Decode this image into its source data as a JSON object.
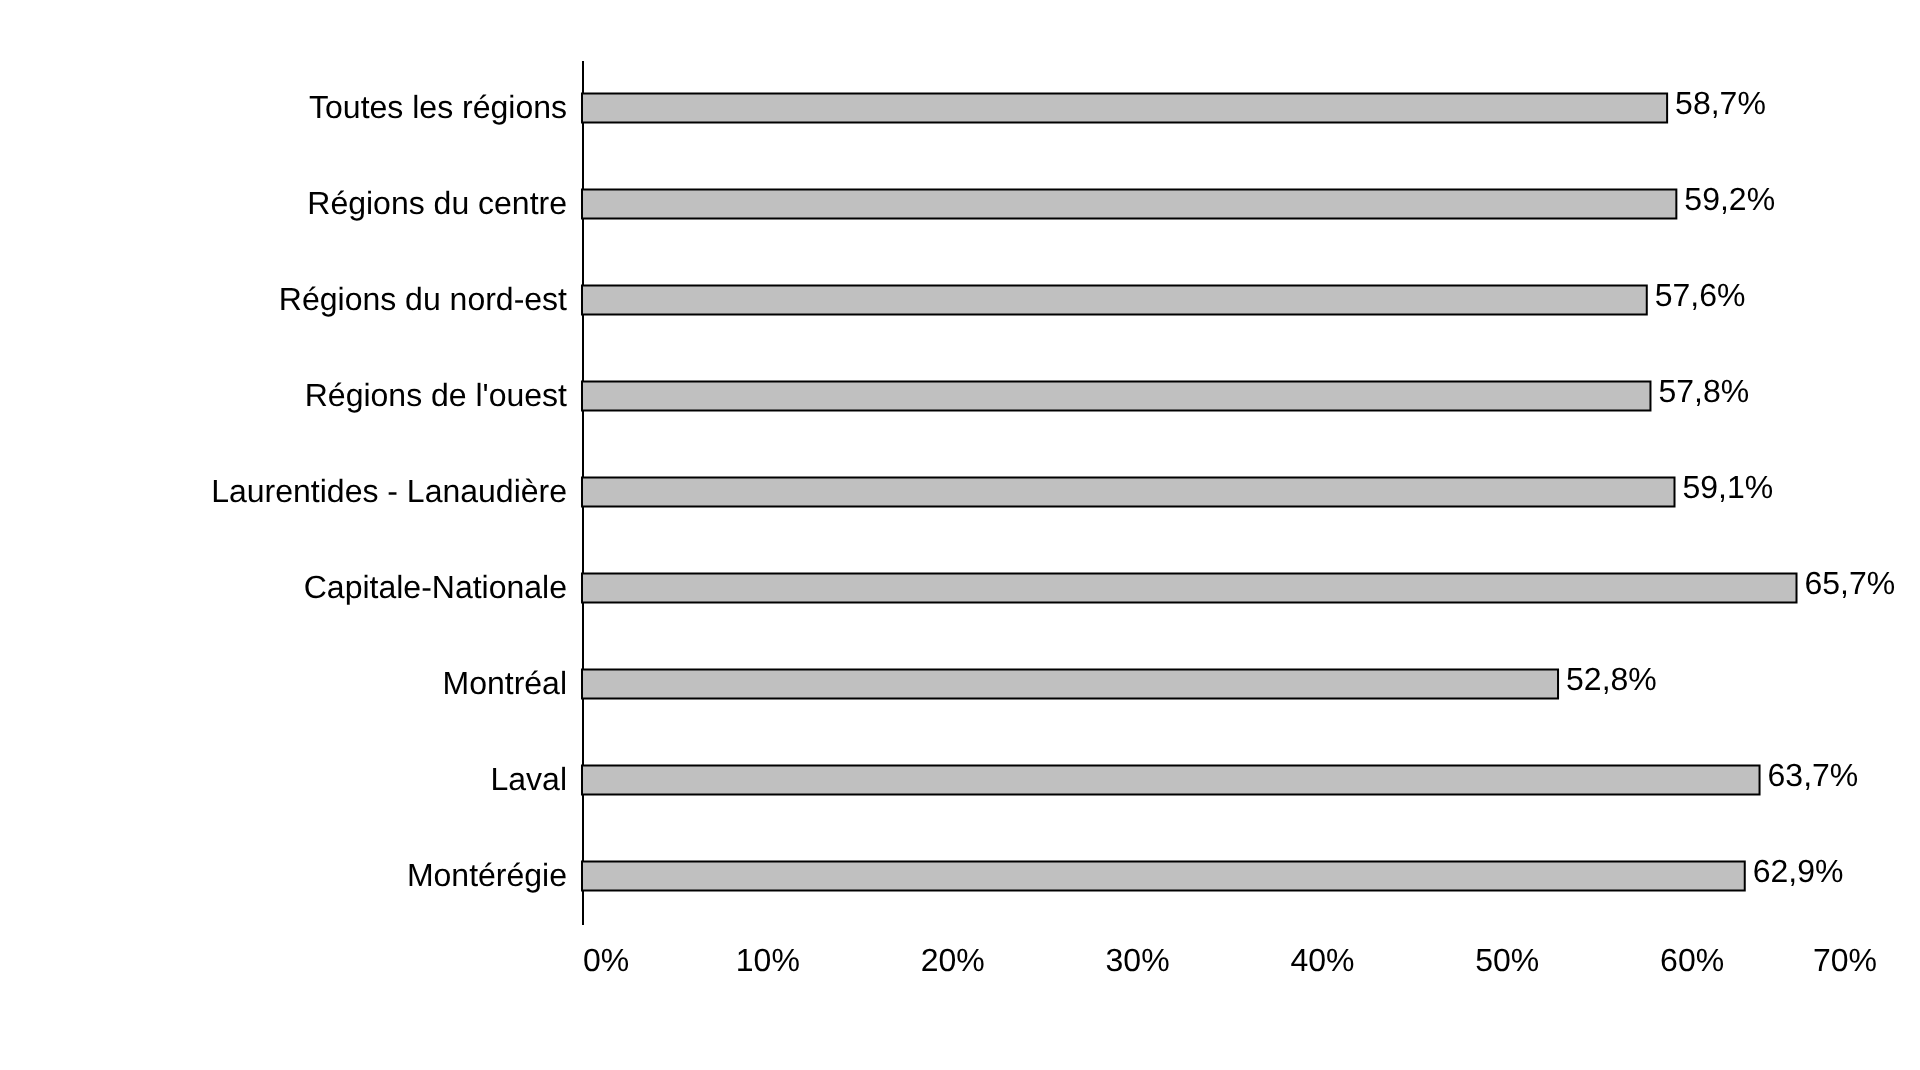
{
  "chart_data": {
    "type": "bar",
    "orientation": "horizontal",
    "categories": [
      "Toutes les régions",
      "Régions du centre",
      "Régions du nord-est",
      "Régions de l'ouest",
      "Laurentides - Lanaudière",
      "Capitale-Nationale",
      "Montréal",
      "Laval",
      "Montérégie"
    ],
    "values": [
      58.7,
      59.2,
      57.6,
      57.8,
      59.1,
      65.7,
      52.8,
      63.7,
      62.9
    ],
    "value_labels": [
      "58,7%",
      "59,2%",
      "57,6%",
      "57,8%",
      "59,1%",
      "65,7%",
      "52,8%",
      "63,7%",
      "62,9%"
    ],
    "color": "#c0c0c0",
    "xlim": [
      0,
      70
    ],
    "xticks": [
      {
        "value": 0,
        "label": "0%"
      },
      {
        "value": 10,
        "label": "10%"
      },
      {
        "value": 20,
        "label": "20%"
      },
      {
        "value": 30,
        "label": "30%"
      },
      {
        "value": 40,
        "label": "40%"
      },
      {
        "value": 50,
        "label": "50%"
      },
      {
        "value": 60,
        "label": "60%"
      },
      {
        "value": 70,
        "label": "70%"
      }
    ],
    "grid": false
  }
}
